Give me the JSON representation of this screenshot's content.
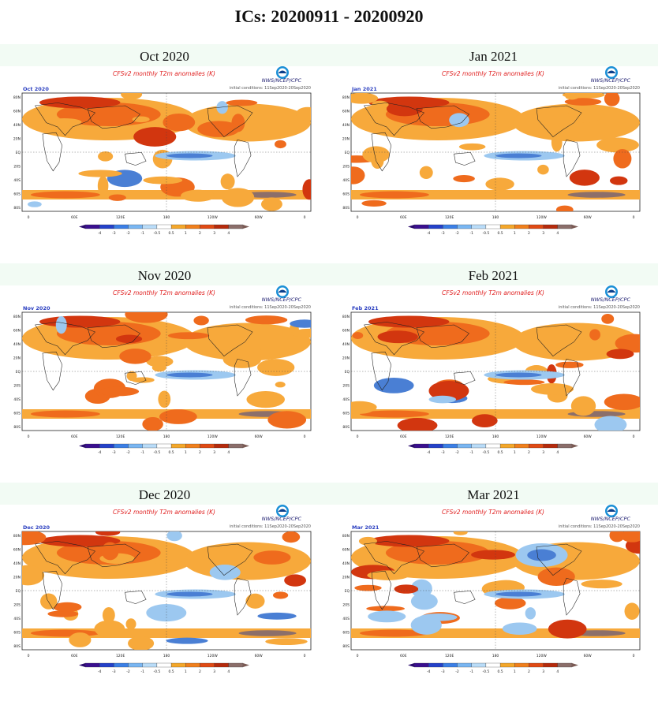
{
  "page": {
    "title": "ICs: 20200911 - 20200920"
  },
  "map_common": {
    "product_title": "CFSv2 monthly T2m anomalies (K)",
    "agency": "NWS/NCEP/CPC",
    "initial_conditions": "initial conditions: 11Sep2020-20Sep2020",
    "lat_labels": [
      "80N",
      "60N",
      "40N",
      "20N",
      "EQ",
      "20S",
      "40S",
      "60S",
      "80S"
    ],
    "lon_labels": [
      "0",
      "60E",
      "120E",
      "180",
      "120W",
      "60W",
      "0"
    ],
    "colorbar_labels": [
      "-4",
      "-3",
      "-2",
      "-1",
      "-0.5",
      "0.5",
      "1",
      "2",
      "3",
      "4"
    ],
    "colorbar_colors": [
      "#3a0f8f",
      "#2441c9",
      "#3b7fe6",
      "#79b6f2",
      "#b9dcf8",
      "#ffffff",
      "#f4a72a",
      "#f07f1c",
      "#e04a14",
      "#b52a0c",
      "#8b6e6a"
    ],
    "anomaly_palette": {
      "cold_strong": "#4a7fd4",
      "cold_weak": "#9cc8f0",
      "neutral": "#ffffff",
      "warm_weak": "#f7a93b",
      "warm": "#ef6b1d",
      "warm_strong": "#d2360f",
      "extreme": "#8c6f6a"
    }
  },
  "panels": [
    {
      "label": "Oct 2020",
      "month_code": "Oct 2020"
    },
    {
      "label": "Jan 2021",
      "month_code": "Jan 2021"
    },
    {
      "label": "Nov 2020",
      "month_code": "Nov 2020"
    },
    {
      "label": "Feb 2021",
      "month_code": "Feb 2021"
    },
    {
      "label": "Dec 2020",
      "month_code": "Dec 2020"
    },
    {
      "label": "Mar 2021",
      "month_code": "Mar 2021"
    }
  ]
}
